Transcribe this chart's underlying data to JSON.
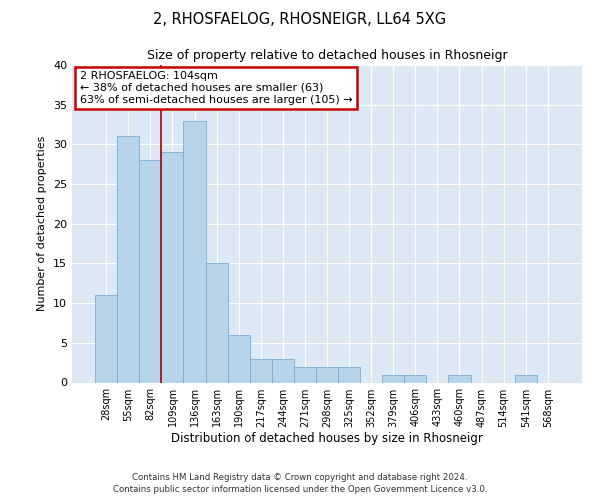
{
  "title": "2, RHOSFAELOG, RHOSNEIGR, LL64 5XG",
  "subtitle": "Size of property relative to detached houses in Rhosneigr",
  "xlabel": "Distribution of detached houses by size in Rhosneigr",
  "ylabel": "Number of detached properties",
  "categories": [
    "28sqm",
    "55sqm",
    "82sqm",
    "109sqm",
    "136sqm",
    "163sqm",
    "190sqm",
    "217sqm",
    "244sqm",
    "271sqm",
    "298sqm",
    "325sqm",
    "352sqm",
    "379sqm",
    "406sqm",
    "433sqm",
    "460sqm",
    "487sqm",
    "514sqm",
    "541sqm",
    "568sqm"
  ],
  "values": [
    11,
    31,
    28,
    29,
    33,
    15,
    6,
    3,
    3,
    2,
    2,
    2,
    0,
    1,
    1,
    0,
    1,
    0,
    0,
    1,
    0
  ],
  "bar_color": "#b8d4eb",
  "bar_edge_color": "#7aafd4",
  "bar_width": 1.0,
  "vline_x": 2.5,
  "vline_color": "#aa0000",
  "ylim": [
    0,
    40
  ],
  "yticks": [
    0,
    5,
    10,
    15,
    20,
    25,
    30,
    35,
    40
  ],
  "annotation_text": "2 RHOSFAELOG: 104sqm\n← 38% of detached houses are smaller (63)\n63% of semi-detached houses are larger (105) →",
  "annotation_box_color": "#ffffff",
  "annotation_box_edge": "#cc0000",
  "bg_color": "#dce9f5",
  "footer_line1": "Contains HM Land Registry data © Crown copyright and database right 2024.",
  "footer_line2": "Contains public sector information licensed under the Open Government Licence v3.0."
}
